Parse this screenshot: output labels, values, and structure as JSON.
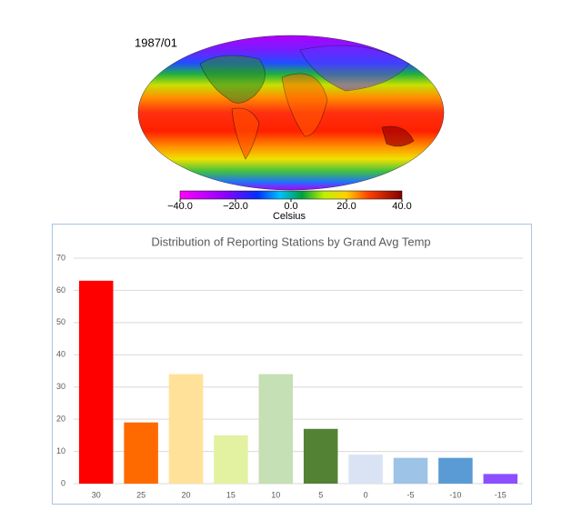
{
  "map": {
    "title": "1987/01",
    "colorbar": {
      "lim": [
        -40,
        40
      ],
      "ticks": [
        {
          "value": -40,
          "label": "−40.0"
        },
        {
          "value": -20,
          "label": "−20.0"
        },
        {
          "value": 0,
          "label": "0.0"
        },
        {
          "value": 20,
          "label": "20.0"
        },
        {
          "value": 40,
          "label": "40.0"
        }
      ],
      "label": "Celsius"
    }
  },
  "chart_data": {
    "type": "bar",
    "title": "Distribution of Reporting Stations by Grand Avg Temp",
    "categories": [
      "30",
      "25",
      "20",
      "15",
      "10",
      "5",
      "0",
      "-5",
      "-10",
      "-15"
    ],
    "values": [
      63,
      19,
      34,
      15,
      34,
      17,
      9,
      8,
      8,
      3
    ],
    "colors": [
      "#ff0000",
      "#ff6a00",
      "#ffe199",
      "#e2f2a0",
      "#c5e0b4",
      "#548235",
      "#dae3f3",
      "#9dc3e6",
      "#5b9bd5",
      "#8c4fff"
    ],
    "ylim": [
      0,
      70
    ],
    "yticks": [
      0,
      10,
      20,
      30,
      40,
      50,
      60,
      70
    ],
    "grid": true
  }
}
